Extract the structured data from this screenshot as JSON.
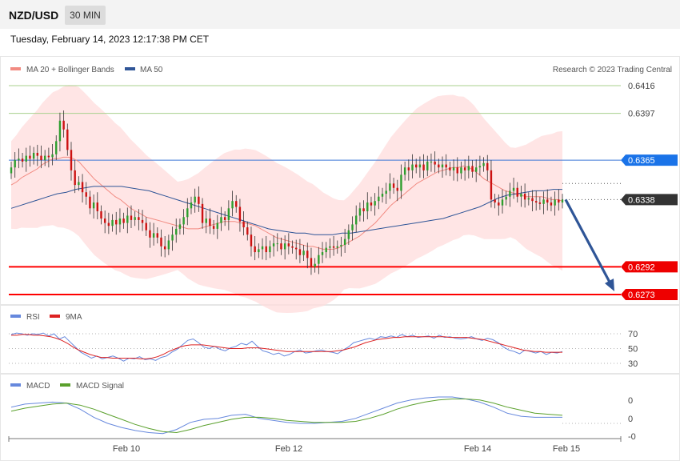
{
  "header": {
    "pair": "NZD/USD",
    "timeframe": "30 MIN"
  },
  "datetime": "Tuesday, February 14, 2023 12:17:38 PM CET",
  "credit": "Research © 2023 Trading Central",
  "colors": {
    "ma20": "#f28b82",
    "ma50": "#2f5597",
    "bull": "#2e9e2e",
    "bear": "#cc1111",
    "band": "#ffdcdc",
    "support": "#ff0000",
    "pivot": "#3c78d8",
    "current": "#333333",
    "target": "#4a9a2a",
    "arrow": "#2f5597",
    "rsi": "#6688dd",
    "rsi_ma": "#dd2222",
    "macd": "#6688dd",
    "macd_signal": "#5aa02c"
  },
  "legend": {
    "ma20": "MA 20 + Bollinger Bands",
    "ma50": "MA 50",
    "rsi": "RSI",
    "rsi_ma": "9MA",
    "macd": "MACD",
    "macd_signal": "MACD Signal"
  },
  "chart_data": {
    "type": "candlestick",
    "symbol": "NZD/USD",
    "interval": "30 MIN",
    "ylim": [
      0.6268,
      0.6425
    ],
    "x_ticks": [
      "Feb 10",
      "Feb 12",
      "Feb 14",
      "Feb 15"
    ],
    "levels": [
      {
        "label": "0.6416",
        "value": 0.6416,
        "kind": "target"
      },
      {
        "label": "0.6397",
        "value": 0.6397,
        "kind": "target"
      },
      {
        "label": "0.6365",
        "value": 0.6365,
        "kind": "pivot"
      },
      {
        "label": "0.6338",
        "value": 0.6338,
        "kind": "current"
      },
      {
        "label": "0.6292",
        "value": 0.6292,
        "kind": "support"
      },
      {
        "label": "0.6273",
        "value": 0.6273,
        "kind": "support"
      }
    ],
    "forecast_arrow": {
      "from": 0.6338,
      "to": 0.6273
    },
    "close": [
      0.636,
      0.6365,
      0.6366,
      0.6364,
      0.6368,
      0.6366,
      0.637,
      0.6368,
      0.6365,
      0.6368,
      0.6367,
      0.6369,
      0.6378,
      0.6392,
      0.6386,
      0.6372,
      0.6358,
      0.6348,
      0.635,
      0.6343,
      0.634,
      0.6332,
      0.6336,
      0.633,
      0.6325,
      0.6322,
      0.632,
      0.6324,
      0.6321,
      0.6325,
      0.6322,
      0.6327,
      0.6324,
      0.6326,
      0.6324,
      0.6322,
      0.6317,
      0.6312,
      0.6315,
      0.6312,
      0.6306,
      0.6304,
      0.631,
      0.6314,
      0.6318,
      0.6321,
      0.6326,
      0.6332,
      0.6336,
      0.634,
      0.6335,
      0.6322,
      0.6325,
      0.632,
      0.6318,
      0.6322,
      0.6326,
      0.6324,
      0.6332,
      0.6337,
      0.6333,
      0.6323,
      0.6319,
      0.6314,
      0.6306,
      0.6302,
      0.6304,
      0.6306,
      0.6302,
      0.6306,
      0.6308,
      0.6308,
      0.6304,
      0.6308,
      0.6306,
      0.6305,
      0.6304,
      0.63,
      0.6303,
      0.6298,
      0.6292,
      0.6294,
      0.63,
      0.6302,
      0.6305,
      0.6306,
      0.6305,
      0.6306,
      0.6307,
      0.6311,
      0.6317,
      0.6321,
      0.6327,
      0.6332,
      0.633,
      0.6336,
      0.6334,
      0.6337,
      0.634,
      0.6342,
      0.6344,
      0.6349,
      0.6346,
      0.6344,
      0.6355,
      0.636,
      0.6358,
      0.6362,
      0.636,
      0.6362,
      0.6358,
      0.6364,
      0.6364,
      0.6362,
      0.636,
      0.6362,
      0.636,
      0.6358,
      0.636,
      0.6356,
      0.636,
      0.6358,
      0.6361,
      0.6357,
      0.636,
      0.6361,
      0.6363,
      0.6358,
      0.6338,
      0.6336,
      0.6334,
      0.6338,
      0.634,
      0.6344,
      0.6346,
      0.634,
      0.6342,
      0.6338,
      0.6339,
      0.6337,
      0.6336,
      0.6335,
      0.6338,
      0.6336,
      0.6334,
      0.6338,
      0.6336,
      0.6338
    ],
    "ma20": [
      0.6348,
      0.635,
      0.6353,
      0.6355,
      0.6357,
      0.6359,
      0.6362,
      0.6364,
      0.6366,
      0.6366,
      0.6367,
      0.6367,
      0.6366,
      0.6364,
      0.636,
      0.6356,
      0.6352,
      0.6349,
      0.6346,
      0.6343,
      0.634,
      0.6338,
      0.6335,
      0.6332,
      0.633,
      0.6328,
      0.6326,
      0.6325,
      0.6324,
      0.6323,
      0.6322,
      0.6321,
      0.632,
      0.6319,
      0.6318,
      0.6318,
      0.6318,
      0.6319,
      0.632,
      0.6321,
      0.6322,
      0.6323,
      0.6323,
      0.6323,
      0.6322,
      0.6322,
      0.6321,
      0.632,
      0.6318,
      0.6316,
      0.6314,
      0.6312,
      0.6311,
      0.631,
      0.6309,
      0.6308,
      0.6307,
      0.6306,
      0.6306,
      0.6305,
      0.6304,
      0.6304,
      0.6304,
      0.6305,
      0.6307,
      0.6309,
      0.6311,
      0.6313,
      0.6316,
      0.6319,
      0.6322,
      0.6326,
      0.633,
      0.6334,
      0.6337,
      0.634,
      0.6343,
      0.6346,
      0.6349,
      0.6351,
      0.6353,
      0.6355,
      0.6357,
      0.6358,
      0.6359,
      0.636,
      0.636,
      0.6361,
      0.636,
      0.6358,
      0.6355,
      0.6352,
      0.635,
      0.6348,
      0.6346,
      0.6344,
      0.6343,
      0.6342,
      0.6341,
      0.634,
      0.634,
      0.634,
      0.634,
      0.6339,
      0.6338,
      0.6338,
      0.6337
    ],
    "ma50": [
      0.6332,
      0.6334,
      0.6336,
      0.6338,
      0.634,
      0.6342,
      0.6343,
      0.6345,
      0.6346,
      0.6347,
      0.6347,
      0.6347,
      0.6347,
      0.6346,
      0.6345,
      0.6344,
      0.6342,
      0.634,
      0.6338,
      0.6336,
      0.6334,
      0.6332,
      0.633,
      0.6328,
      0.6326,
      0.6324,
      0.6322,
      0.632,
      0.6318,
      0.6317,
      0.6316,
      0.6315,
      0.6315,
      0.6314,
      0.6314,
      0.6314,
      0.6315,
      0.6315,
      0.6316,
      0.6317,
      0.6318,
      0.6319,
      0.632,
      0.6321,
      0.6322,
      0.6323,
      0.6324,
      0.6325,
      0.6327,
      0.6329,
      0.6331,
      0.6333,
      0.6336,
      0.6339,
      0.6341,
      0.6342,
      0.6343,
      0.6344,
      0.6344,
      0.6345,
      0.6345
    ],
    "rsi_levels": [
      70,
      50,
      30
    ],
    "rsi": [
      69,
      71,
      70,
      68,
      70,
      69,
      71,
      67,
      70,
      63,
      66,
      59,
      52,
      45,
      41,
      37,
      40,
      36,
      38,
      40,
      37,
      33,
      37,
      36,
      39,
      35,
      36,
      34,
      38,
      40,
      45,
      49,
      55,
      61,
      63,
      58,
      52,
      50,
      53,
      49,
      47,
      51,
      53,
      57,
      55,
      60,
      53,
      47,
      45,
      42,
      44,
      40,
      42,
      46,
      48,
      44,
      45,
      47,
      48,
      46,
      45,
      43,
      48,
      52,
      58,
      60,
      62,
      64,
      62,
      66,
      65,
      67,
      65,
      69,
      66,
      68,
      65,
      66,
      67,
      64,
      68,
      65,
      66,
      64,
      63,
      64,
      66,
      63,
      61,
      64,
      62,
      58,
      52,
      48,
      46,
      43,
      48,
      46,
      44,
      46,
      42,
      45,
      44,
      46
    ],
    "rsi_ma": [
      68,
      68,
      69,
      69,
      68,
      68,
      67,
      66,
      64,
      61,
      57,
      52,
      48,
      45,
      42,
      40,
      38,
      38,
      37,
      37,
      37,
      37,
      37,
      36,
      36,
      37,
      39,
      42,
      46,
      49,
      52,
      54,
      55,
      55,
      55,
      54,
      53,
      52,
      51,
      50,
      50,
      50,
      51,
      51,
      51,
      50,
      49,
      48,
      47,
      46,
      46,
      46,
      46,
      46,
      46,
      46,
      46,
      46,
      47,
      48,
      50,
      52,
      55,
      58,
      60,
      62,
      63,
      64,
      65,
      65,
      66,
      66,
      66,
      66,
      66,
      66,
      66,
      66,
      65,
      65,
      65,
      65,
      64,
      63,
      62,
      60,
      58,
      56,
      54,
      52,
      50,
      48,
      47,
      46,
      46,
      45,
      45,
      45,
      45
    ],
    "macd": [
      0.6,
      0.9,
      1.0,
      1.1,
      1.0,
      0.4,
      -0.4,
      -1.0,
      -1.4,
      -1.7,
      -1.9,
      -2.0,
      -1.6,
      -0.9,
      -0.6,
      -0.5,
      -0.2,
      -0.1,
      -0.5,
      -0.7,
      -0.9,
      -1.0,
      -1.0,
      -0.9,
      -0.8,
      -0.5,
      0.0,
      0.5,
      1.0,
      1.3,
      1.5,
      1.6,
      1.6,
      1.4,
      1.1,
      0.6,
      0.0,
      -0.3,
      -0.4,
      -0.4,
      -0.4
    ],
    "macd_signal": [
      0.2,
      0.5,
      0.7,
      0.9,
      1.0,
      0.8,
      0.4,
      -0.1,
      -0.6,
      -1.1,
      -1.5,
      -1.8,
      -1.9,
      -1.6,
      -1.2,
      -0.9,
      -0.6,
      -0.4,
      -0.4,
      -0.5,
      -0.7,
      -0.8,
      -0.9,
      -0.9,
      -0.9,
      -0.8,
      -0.5,
      -0.1,
      0.4,
      0.8,
      1.1,
      1.3,
      1.4,
      1.4,
      1.3,
      1.0,
      0.6,
      0.3,
      0.0,
      -0.1,
      -0.2
    ],
    "macd_ticks": [
      "0",
      "0",
      "-0"
    ]
  }
}
